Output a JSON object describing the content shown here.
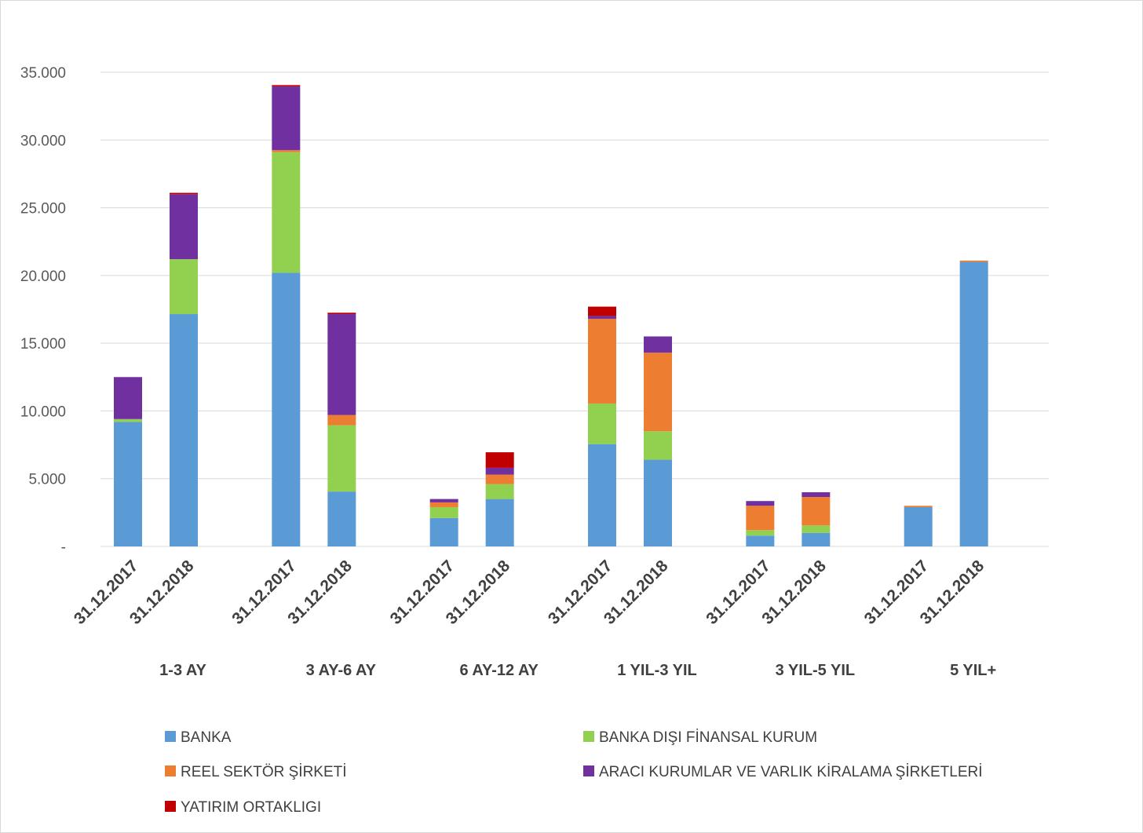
{
  "chart_data": {
    "type": "bar",
    "stacked": true,
    "groups": [
      {
        "label": "1-3 AY",
        "categories": [
          "31.12.2017",
          "31.12.2018"
        ]
      },
      {
        "label": "3 AY-6 AY",
        "categories": [
          "31.12.2017",
          "31.12.2018"
        ]
      },
      {
        "label": "6 AY-12 AY",
        "categories": [
          "31.12.2017",
          "31.12.2018"
        ]
      },
      {
        "label": "1 YIL-3 YIL",
        "categories": [
          "31.12.2017",
          "31.12.2018"
        ]
      },
      {
        "label": "3 YIL-5 YIL",
        "categories": [
          "31.12.2017",
          "31.12.2018"
        ]
      },
      {
        "label": "5 YIL+",
        "categories": [
          "31.12.2017",
          "31.12.2018"
        ]
      }
    ],
    "series": [
      {
        "name": "BANKA",
        "color": "#5b9bd5",
        "values": [
          9200,
          17150,
          20200,
          4050,
          2100,
          3500,
          7550,
          6400,
          800,
          1000,
          2900,
          21000
        ]
      },
      {
        "name": "BANKA DIŞI FİNANSAL KURUM",
        "color": "#92d050",
        "values": [
          200,
          4050,
          8900,
          4900,
          800,
          1100,
          3000,
          2100,
          400,
          550,
          0,
          0
        ]
      },
      {
        "name": "REEL SEKTÖR ŞİRKETİ",
        "color": "#ed7d31",
        "values": [
          0,
          0,
          150,
          750,
          350,
          700,
          6250,
          5800,
          1800,
          2100,
          100,
          100
        ]
      },
      {
        "name": "ARACI KURUMLAR VE VARLIK KİRALAMA ŞİRKETLERİ",
        "color": "#7030a0",
        "values": [
          3100,
          4800,
          4700,
          7450,
          250,
          500,
          200,
          1200,
          350,
          350,
          0,
          0
        ]
      },
      {
        "name": "YATIRIM ORTAKLIGI",
        "color": "#c00000",
        "values": [
          0,
          100,
          100,
          100,
          0,
          1150,
          700,
          0,
          0,
          0,
          0,
          0
        ]
      }
    ],
    "y_ticks": [
      "-",
      "5.000",
      "10.000",
      "15.000",
      "20.000",
      "25.000",
      "30.000",
      "35.000"
    ],
    "ylim": [
      0,
      35000
    ],
    "grid": true,
    "legend_position": "bottom"
  }
}
